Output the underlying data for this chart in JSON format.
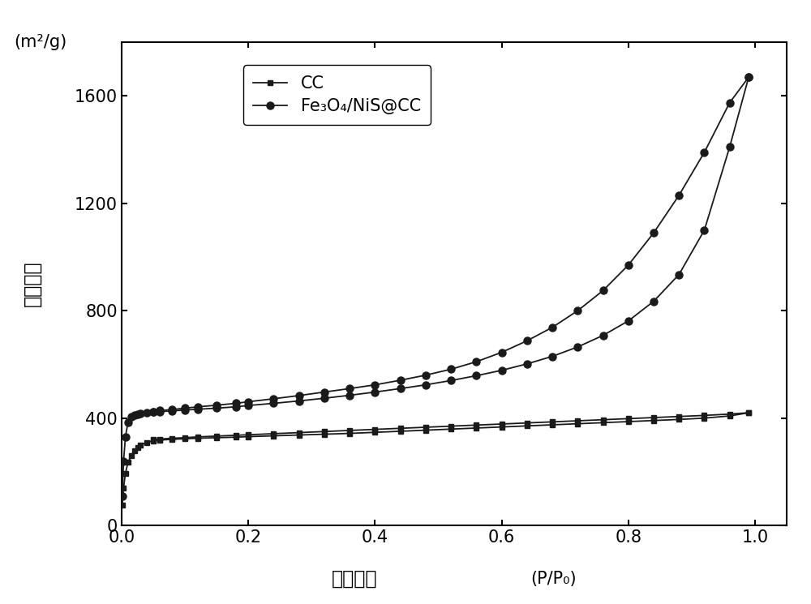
{
  "title": "",
  "xlabel_chinese": "相对压力",
  "xlabel_unit": "(P/P₀)",
  "ylabel_chinese": "吸附体积",
  "ylabel_unit": "(m²/g)",
  "xlim": [
    0,
    1.05
  ],
  "ylim": [
    0,
    1800
  ],
  "yticks": [
    0,
    400,
    800,
    1200,
    1600
  ],
  "xticks": [
    0.0,
    0.2,
    0.4,
    0.6,
    0.8,
    1.0
  ],
  "legend_cc": "CC",
  "legend_fe": "Fe₃O₄/NiS@CC",
  "color": "#1a1a1a",
  "bg_color": "#ffffff",
  "cc_ads_x": [
    0.001,
    0.003,
    0.006,
    0.01,
    0.015,
    0.02,
    0.025,
    0.03,
    0.04,
    0.05,
    0.06,
    0.08,
    0.1,
    0.12,
    0.15,
    0.18,
    0.2,
    0.24,
    0.28,
    0.32,
    0.36,
    0.4,
    0.44,
    0.48,
    0.52,
    0.56,
    0.6,
    0.64,
    0.68,
    0.72,
    0.76,
    0.8,
    0.84,
    0.88,
    0.92,
    0.96,
    0.99
  ],
  "cc_ads_y": [
    75,
    140,
    195,
    235,
    260,
    278,
    290,
    300,
    310,
    315,
    318,
    321,
    323,
    325,
    327,
    329,
    331,
    334,
    337,
    340,
    343,
    347,
    351,
    355,
    359,
    363,
    367,
    371,
    375,
    379,
    383,
    387,
    391,
    395,
    400,
    408,
    420
  ],
  "cc_des_x": [
    0.99,
    0.96,
    0.92,
    0.88,
    0.84,
    0.8,
    0.76,
    0.72,
    0.68,
    0.64,
    0.6,
    0.56,
    0.52,
    0.48,
    0.44,
    0.4,
    0.36,
    0.32,
    0.28,
    0.24,
    0.2,
    0.18,
    0.15,
    0.12,
    0.1,
    0.08,
    0.06,
    0.05
  ],
  "cc_des_y": [
    420,
    415,
    410,
    406,
    402,
    398,
    394,
    390,
    386,
    382,
    378,
    374,
    370,
    366,
    362,
    358,
    354,
    350,
    346,
    342,
    338,
    336,
    333,
    330,
    327,
    325,
    322,
    320
  ],
  "fe_ads_x": [
    0.001,
    0.003,
    0.006,
    0.01,
    0.015,
    0.02,
    0.025,
    0.03,
    0.04,
    0.05,
    0.06,
    0.08,
    0.1,
    0.12,
    0.15,
    0.18,
    0.2,
    0.24,
    0.28,
    0.32,
    0.36,
    0.4,
    0.44,
    0.48,
    0.52,
    0.56,
    0.6,
    0.64,
    0.68,
    0.72,
    0.76,
    0.8,
    0.84,
    0.88,
    0.92,
    0.96,
    0.99
  ],
  "fe_ads_y": [
    110,
    240,
    330,
    385,
    405,
    412,
    415,
    418,
    420,
    422,
    424,
    427,
    430,
    433,
    437,
    442,
    447,
    455,
    464,
    474,
    485,
    497,
    510,
    524,
    540,
    558,
    578,
    602,
    630,
    665,
    708,
    762,
    835,
    935,
    1100,
    1410,
    1670
  ],
  "fe_des_x": [
    0.99,
    0.96,
    0.92,
    0.88,
    0.84,
    0.8,
    0.76,
    0.72,
    0.68,
    0.64,
    0.6,
    0.56,
    0.52,
    0.48,
    0.44,
    0.4,
    0.36,
    0.32,
    0.28,
    0.24,
    0.2,
    0.18,
    0.15,
    0.12,
    0.1,
    0.08,
    0.06,
    0.05
  ],
  "fe_des_y": [
    1670,
    1575,
    1390,
    1230,
    1090,
    970,
    875,
    800,
    738,
    688,
    645,
    610,
    582,
    560,
    541,
    524,
    510,
    497,
    484,
    472,
    461,
    455,
    448,
    442,
    437,
    432,
    428,
    424
  ]
}
